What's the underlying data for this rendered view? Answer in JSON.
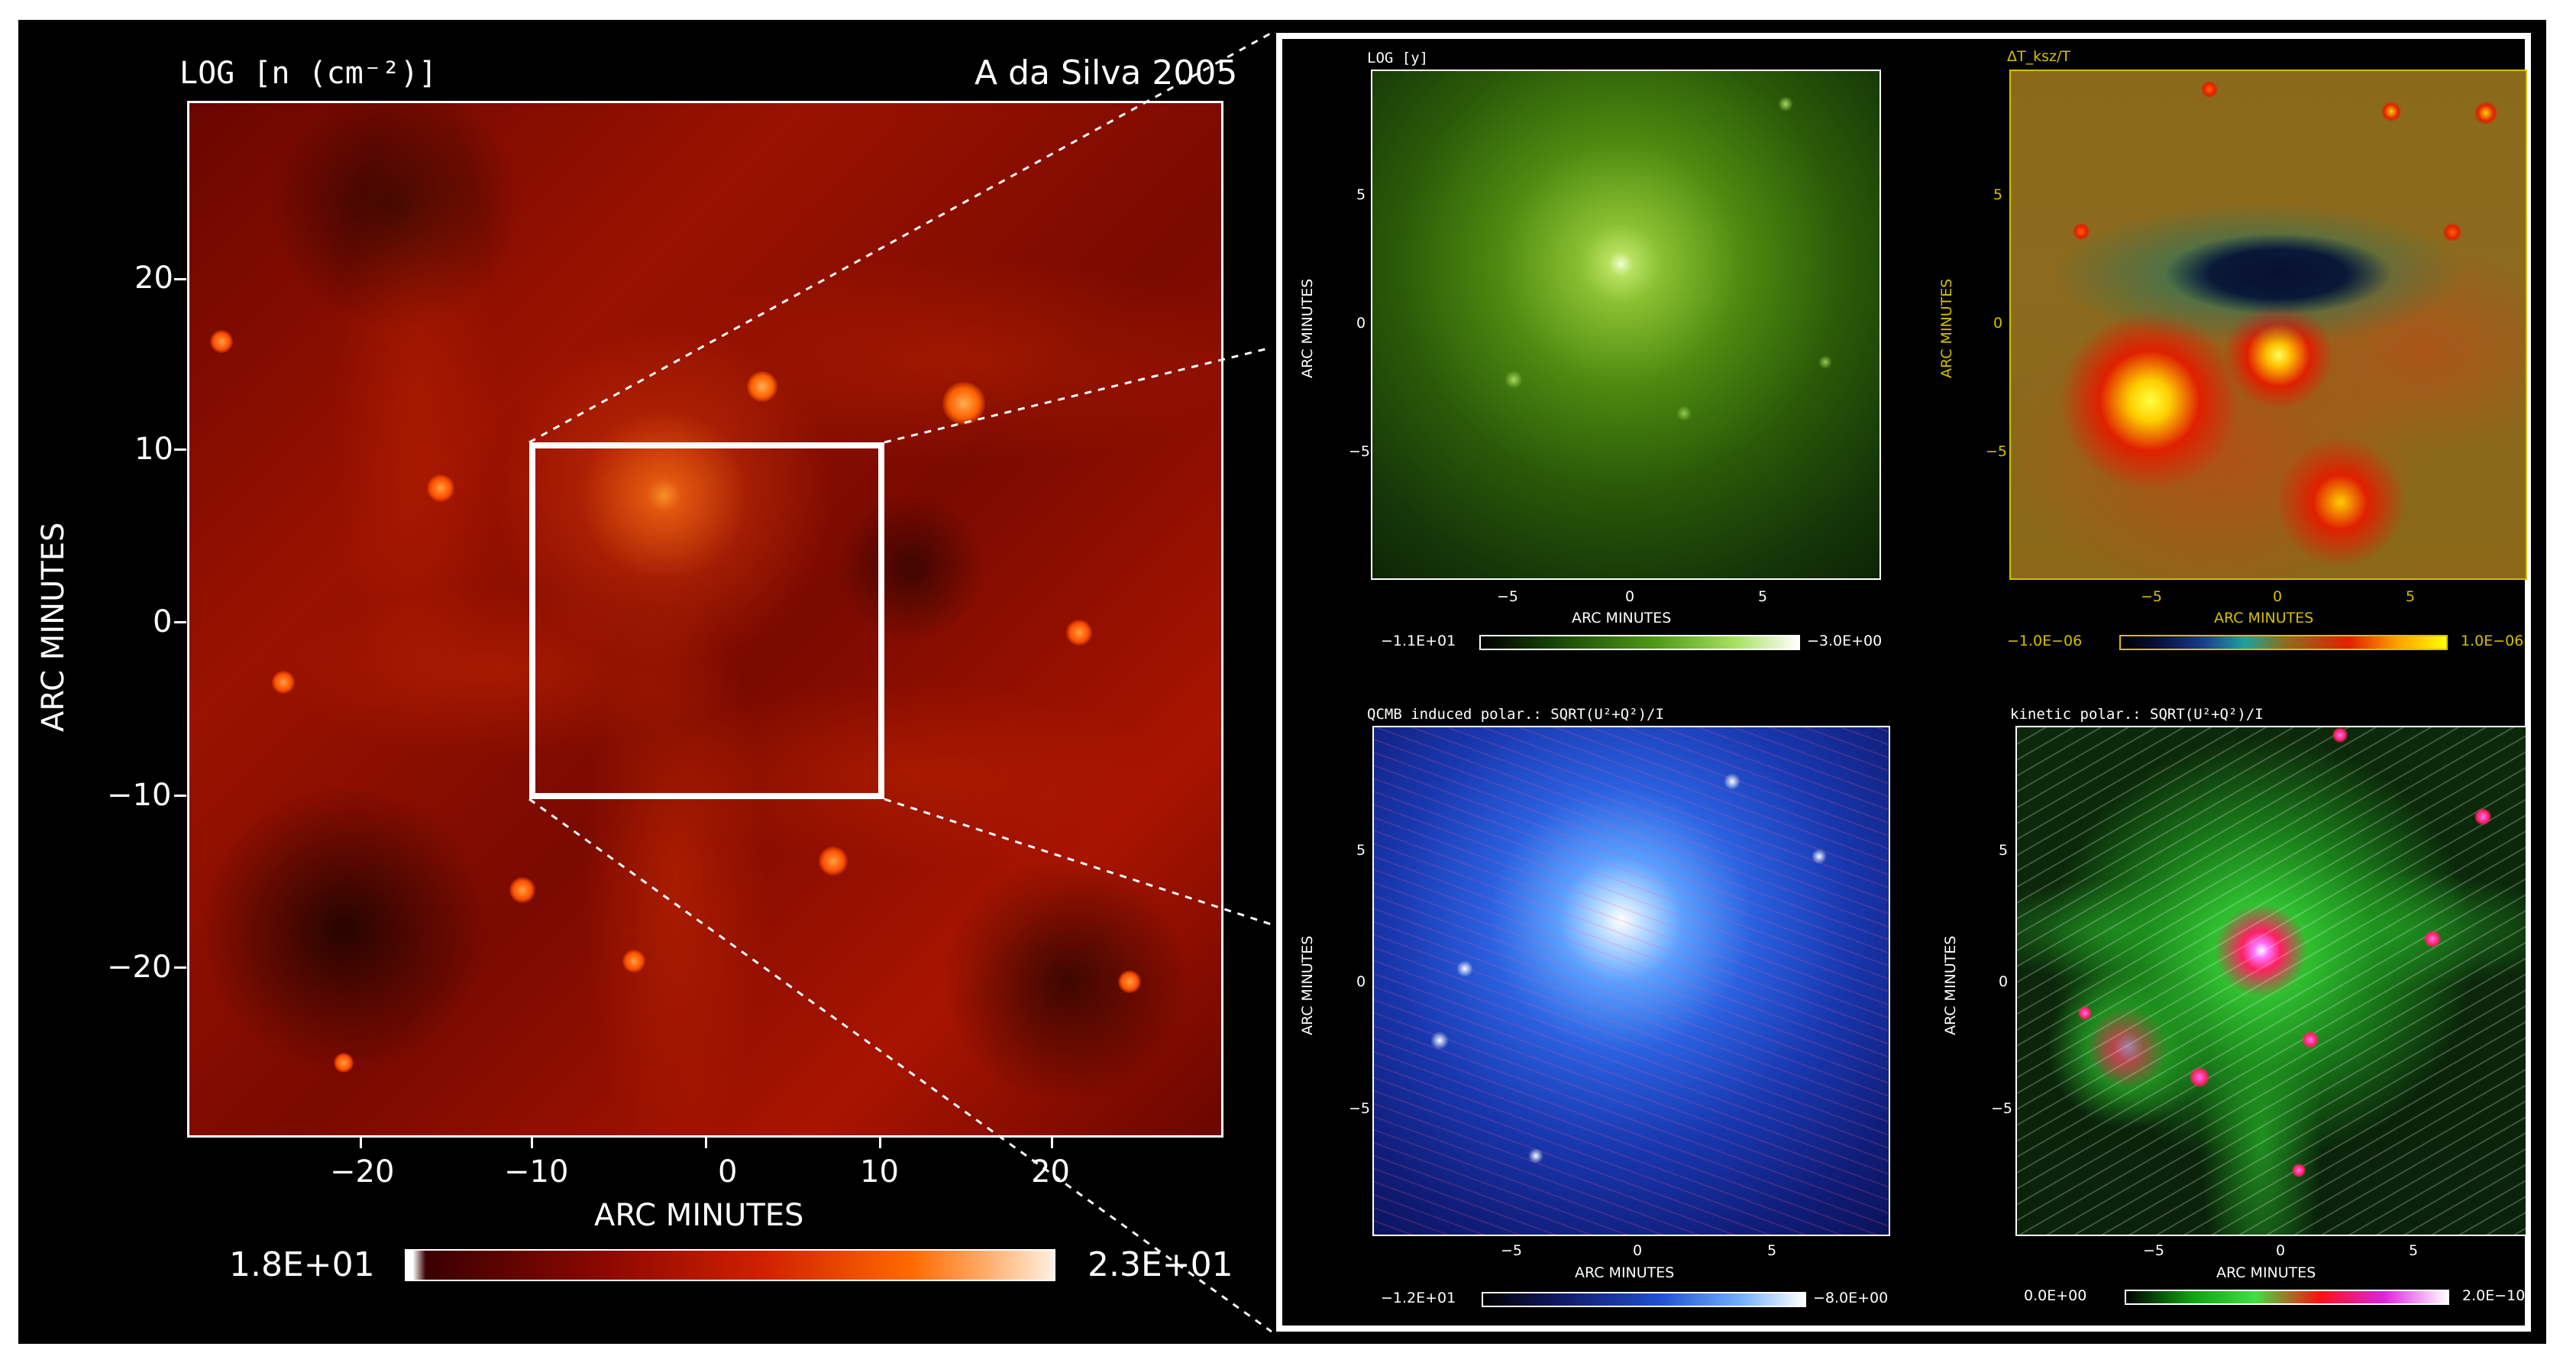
{
  "main_panel": {
    "title": "LOG [n (cm⁻²)]",
    "credit": "A da Silva 2005",
    "x_label": "ARC MINUTES",
    "y_label": "ARC MINUTES",
    "x_ticks": [
      "−20",
      "−10",
      "0",
      "10",
      "20"
    ],
    "y_ticks": [
      "20",
      "10",
      "0",
      "−10",
      "−20"
    ],
    "colorbar_min": "1.8E+01",
    "colorbar_max": "2.3E+01",
    "colormap_colors": [
      "#ffffff",
      "#5a0000",
      "#c01800",
      "#ff7800",
      "#ffd0a0",
      "#ffffff"
    ]
  },
  "panels": [
    {
      "title": "LOG [y]",
      "x_label": "ARC MINUTES",
      "y_label": "ARC MINUTES",
      "x_ticks": [
        "−5",
        "0",
        "5"
      ],
      "y_ticks": [
        "5",
        "0",
        "−5"
      ],
      "colorbar_min": "−1.1E+01",
      "colorbar_max": "−3.0E+00",
      "colormap": "green"
    },
    {
      "title": "ΔT_ksz/T",
      "x_label": "ARC MINUTES",
      "y_label": "ARC MINUTES",
      "x_ticks": [
        "−5",
        "0",
        "5"
      ],
      "y_ticks": [
        "5",
        "0",
        "−5"
      ],
      "colorbar_min": "−1.0E−06",
      "colorbar_max": "1.0E−06",
      "colormap": "diverging"
    },
    {
      "title": "QCMB induced polar.: SQRT(U²+Q²)/I",
      "x_label": "ARC MINUTES",
      "y_label": "ARC MINUTES",
      "x_ticks": [
        "−5",
        "0",
        "5"
      ],
      "y_ticks": [
        "5",
        "0",
        "−5"
      ],
      "colorbar_min": "−1.2E+01",
      "colorbar_max": "−8.0E+00",
      "colormap": "blue"
    },
    {
      "title": "kinetic polar.: SQRT(U²+Q²)/I",
      "x_label": "ARC MINUTES",
      "y_label": "ARC MINUTES",
      "x_ticks": [
        "−5",
        "0",
        "5"
      ],
      "y_ticks": [
        "5",
        "0",
        "−5"
      ],
      "colorbar_min": "0.0E+00",
      "colorbar_max": "2.0E−10",
      "colormap": "green-red-magenta"
    }
  ]
}
